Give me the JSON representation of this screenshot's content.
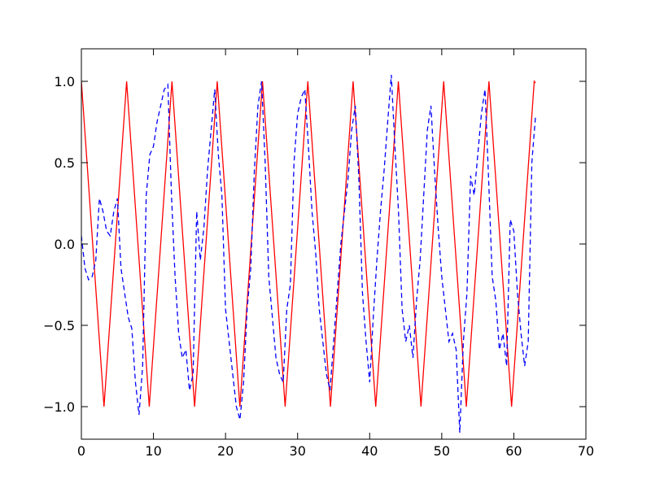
{
  "chart_data": {
    "type": "line",
    "title": "",
    "xlabel": "",
    "ylabel": "",
    "xlim": [
      0,
      70
    ],
    "ylim": [
      -1.2,
      1.2
    ],
    "x_ticks": [
      0,
      10,
      20,
      30,
      40,
      50,
      60,
      70
    ],
    "x_tick_labels": [
      "0",
      "10",
      "20",
      "30",
      "40",
      "50",
      "60",
      "70"
    ],
    "y_ticks": [
      -1.0,
      -0.5,
      0.0,
      0.5,
      1.0
    ],
    "y_tick_labels": [
      "−1.0",
      "−0.5",
      "0.0",
      "0.5",
      "1.0"
    ],
    "grid": false,
    "legend": "none",
    "series": [
      {
        "color": "#ff0000",
        "style": "solid",
        "x": [
          0,
          1.57,
          3.14,
          4.71,
          6.28,
          7.85,
          9.42,
          11.0,
          12.57,
          14.14,
          15.71,
          17.28,
          18.85,
          20.42,
          21.99,
          23.56,
          25.13,
          26.7,
          28.27,
          29.85,
          31.42,
          32.99,
          34.56,
          36.13,
          37.7,
          39.27,
          40.84,
          42.41,
          43.98,
          45.55,
          47.12,
          48.69,
          50.27,
          51.84,
          53.41,
          54.98,
          56.55,
          58.12,
          59.69,
          61.26,
          62.83,
          63.0
        ],
        "y": [
          1.0,
          0.0,
          -1.0,
          0.0,
          1.0,
          0.0,
          -1.0,
          0.0,
          1.0,
          0.0,
          -1.0,
          0.0,
          1.0,
          0.0,
          -1.0,
          0.0,
          1.0,
          0.0,
          -1.0,
          0.0,
          1.0,
          0.0,
          -1.0,
          0.0,
          1.0,
          0.0,
          -1.0,
          0.0,
          1.0,
          0.0,
          -1.0,
          0.0,
          1.0,
          0.0,
          -1.0,
          0.0,
          1.0,
          0.0,
          -1.0,
          0.0,
          1.0,
          0.99
        ]
      },
      {
        "color": "#0000ff",
        "style": "dashed",
        "x": [
          0,
          0.5,
          1.0,
          1.5,
          2.0,
          2.5,
          3.0,
          3.5,
          4.0,
          4.5,
          5.0,
          5.5,
          6.0,
          6.5,
          7.0,
          7.5,
          8.0,
          8.5,
          9.0,
          9.5,
          10.0,
          10.5,
          11.0,
          11.5,
          12.0,
          12.5,
          13.0,
          13.5,
          14.0,
          14.5,
          15.0,
          15.5,
          16.0,
          16.5,
          17.0,
          17.5,
          18.0,
          18.5,
          19.0,
          19.5,
          20.0,
          20.5,
          21.0,
          21.5,
          22.0,
          22.5,
          23.0,
          23.5,
          24.0,
          24.5,
          25.0,
          25.5,
          26.0,
          26.5,
          27.0,
          27.5,
          28.0,
          28.5,
          29.0,
          29.5,
          30.0,
          30.5,
          31.0,
          31.5,
          32.0,
          32.5,
          33.0,
          33.5,
          34.0,
          34.5,
          35.0,
          35.5,
          36.0,
          36.5,
          37.0,
          37.5,
          38.0,
          38.5,
          39.0,
          39.5,
          40.0,
          40.5,
          41.0,
          41.5,
          42.0,
          42.5,
          43.0,
          43.5,
          44.0,
          44.5,
          45.0,
          45.5,
          46.0,
          46.5,
          47.0,
          47.5,
          48.0,
          48.5,
          49.0,
          49.5,
          50.0,
          50.5,
          51.0,
          51.5,
          52.0,
          52.5,
          53.0,
          53.5,
          54.0,
          54.5,
          55.0,
          55.5,
          56.0,
          56.5,
          57.0,
          57.5,
          58.0,
          58.5,
          59.0,
          59.5,
          60.0,
          60.5,
          61.0,
          61.5,
          62.0,
          62.5,
          63.0
        ],
        "y": [
          0.05,
          -0.15,
          -0.22,
          -0.2,
          -0.1,
          0.28,
          0.2,
          0.08,
          0.05,
          0.2,
          0.28,
          -0.15,
          -0.3,
          -0.45,
          -0.52,
          -0.85,
          -1.05,
          -0.75,
          0.3,
          0.55,
          0.6,
          0.75,
          0.85,
          0.95,
          0.98,
          0.3,
          -0.2,
          -0.55,
          -0.7,
          -0.65,
          -0.9,
          -0.8,
          0.2,
          -0.1,
          0.1,
          0.45,
          0.7,
          0.95,
          0.55,
          0.3,
          -0.4,
          -0.6,
          -0.8,
          -1.0,
          -1.08,
          -0.85,
          -0.4,
          -0.15,
          0.45,
          0.85,
          1.0,
          0.5,
          -0.2,
          -0.45,
          -0.7,
          -0.8,
          -0.85,
          -0.4,
          -0.25,
          0.5,
          0.8,
          0.9,
          0.95,
          0.6,
          0.2,
          -0.05,
          -0.4,
          -0.6,
          -0.8,
          -0.9,
          -0.6,
          -0.3,
          0.0,
          0.2,
          0.4,
          0.7,
          0.85,
          0.4,
          -0.3,
          -0.6,
          -0.85,
          -0.45,
          -0.1,
          0.2,
          0.45,
          0.75,
          1.04,
          0.6,
          0.2,
          -0.4,
          -0.6,
          -0.5,
          -0.7,
          -0.35,
          -0.1,
          0.3,
          0.7,
          0.85,
          0.45,
          0.1,
          -0.2,
          -0.4,
          -0.6,
          -0.55,
          -0.65,
          -1.16,
          -0.6,
          -0.3,
          0.42,
          0.3,
          0.55,
          0.8,
          0.95,
          0.4,
          -0.2,
          -0.35,
          -0.65,
          -0.55,
          -0.75,
          0.15,
          0.08,
          -0.3,
          -0.55,
          -0.75,
          -0.6,
          0.5,
          0.78
        ]
      }
    ]
  }
}
